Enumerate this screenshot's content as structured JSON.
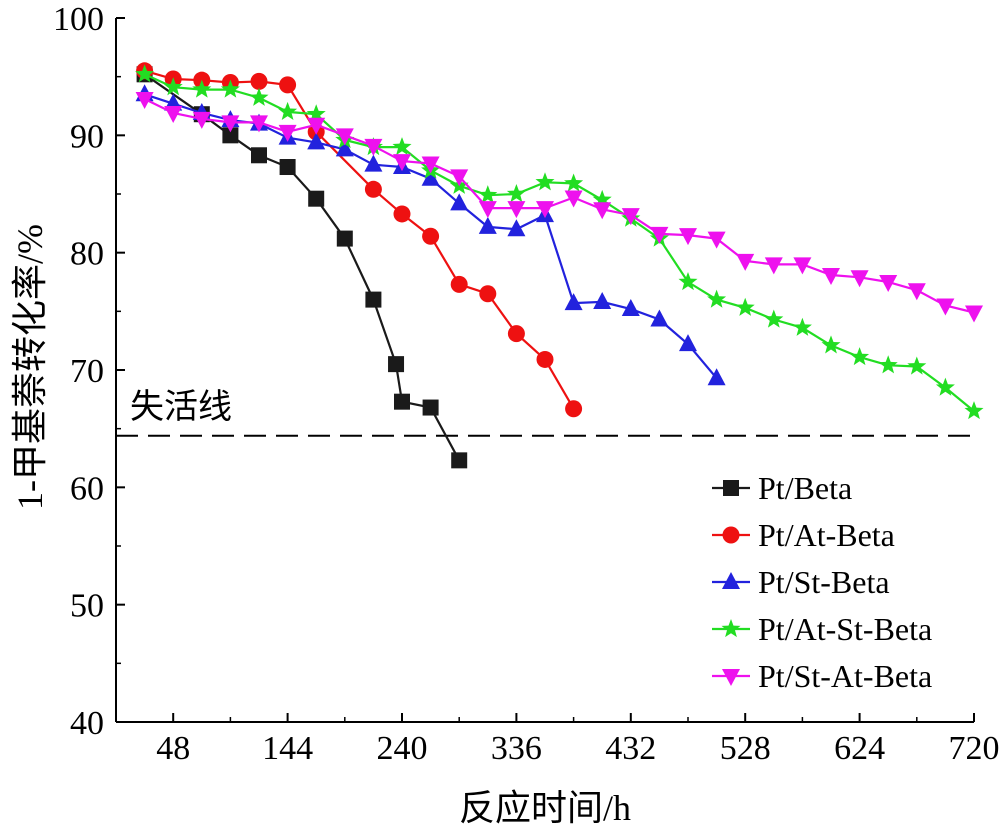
{
  "chart_data": {
    "type": "line",
    "title": "",
    "xlabel": "反应时间/h",
    "ylabel": "1-甲基萘转化率/%",
    "xlim": [
      0,
      720
    ],
    "ylim": [
      40,
      100
    ],
    "xticks": [
      48,
      144,
      240,
      336,
      432,
      528,
      624,
      720
    ],
    "yticks": [
      40,
      50,
      60,
      70,
      80,
      90,
      100
    ],
    "grid": false,
    "legend_position": "bottom-right",
    "annotations": [
      {
        "text": "失活线",
        "y": 64.4,
        "style": "dashed"
      }
    ],
    "series": [
      {
        "name": "Pt/Beta",
        "color": "#1a1a1a",
        "marker": "square",
        "x": [
          24,
          72,
          96,
          120,
          144,
          168,
          192,
          216,
          235,
          240,
          264,
          288
        ],
        "y": [
          95.2,
          91.8,
          90.0,
          88.3,
          87.3,
          84.6,
          81.2,
          76.0,
          70.5,
          67.3,
          66.8,
          62.3
        ]
      },
      {
        "name": "Pt/At-Beta",
        "color": "#ee1111",
        "marker": "circle",
        "x": [
          24,
          48,
          72,
          96,
          120,
          144,
          168,
          216,
          240,
          264,
          288,
          312,
          336,
          360,
          384
        ],
        "y": [
          95.5,
          94.8,
          94.7,
          94.5,
          94.6,
          94.3,
          90.3,
          85.4,
          83.3,
          81.4,
          77.3,
          76.5,
          73.1,
          70.9,
          66.7
        ]
      },
      {
        "name": "Pt/St-Beta",
        "color": "#2222dd",
        "marker": "triangle-up",
        "x": [
          24,
          48,
          72,
          96,
          120,
          144,
          168,
          192,
          216,
          240,
          264,
          288,
          312,
          336,
          360,
          384,
          408,
          432,
          456,
          480,
          504
        ],
        "y": [
          93.5,
          92.7,
          91.9,
          91.3,
          91.0,
          89.8,
          89.4,
          88.8,
          87.5,
          87.3,
          86.3,
          84.2,
          82.2,
          82.0,
          83.2,
          75.7,
          75.8,
          75.2,
          74.3,
          72.2,
          69.3
        ]
      },
      {
        "name": "Pt/At-St-Beta",
        "color": "#22dd22",
        "marker": "star",
        "x": [
          24,
          48,
          72,
          96,
          120,
          144,
          168,
          192,
          216,
          240,
          264,
          288,
          312,
          336,
          360,
          384,
          408,
          432,
          456,
          480,
          504,
          528,
          552,
          576,
          600,
          624,
          648,
          672,
          696,
          720
        ],
        "y": [
          95.2,
          94.1,
          93.9,
          93.9,
          93.2,
          92.0,
          91.8,
          89.6,
          89.0,
          89.0,
          87.0,
          85.7,
          84.9,
          85.0,
          86.0,
          85.9,
          84.5,
          82.9,
          81.2,
          77.5,
          76.0,
          75.3,
          74.3,
          73.6,
          72.1,
          71.1,
          70.4,
          70.3,
          68.5,
          66.5
        ]
      },
      {
        "name": "Pt/St-At-Beta",
        "color": "#ee11ee",
        "marker": "triangle-down",
        "x": [
          24,
          48,
          72,
          96,
          120,
          144,
          168,
          192,
          216,
          240,
          264,
          288,
          312,
          336,
          360,
          384,
          408,
          432,
          456,
          480,
          504,
          528,
          552,
          576,
          600,
          624,
          648,
          672,
          696,
          720
        ],
        "y": [
          93.1,
          91.9,
          91.4,
          91.1,
          91.1,
          90.3,
          90.9,
          90.0,
          89.1,
          87.8,
          87.6,
          86.5,
          83.8,
          83.8,
          83.8,
          84.7,
          83.7,
          83.2,
          81.6,
          81.5,
          81.2,
          79.3,
          79.0,
          79.0,
          78.1,
          77.9,
          77.5,
          76.8,
          75.5,
          74.9
        ]
      }
    ]
  }
}
